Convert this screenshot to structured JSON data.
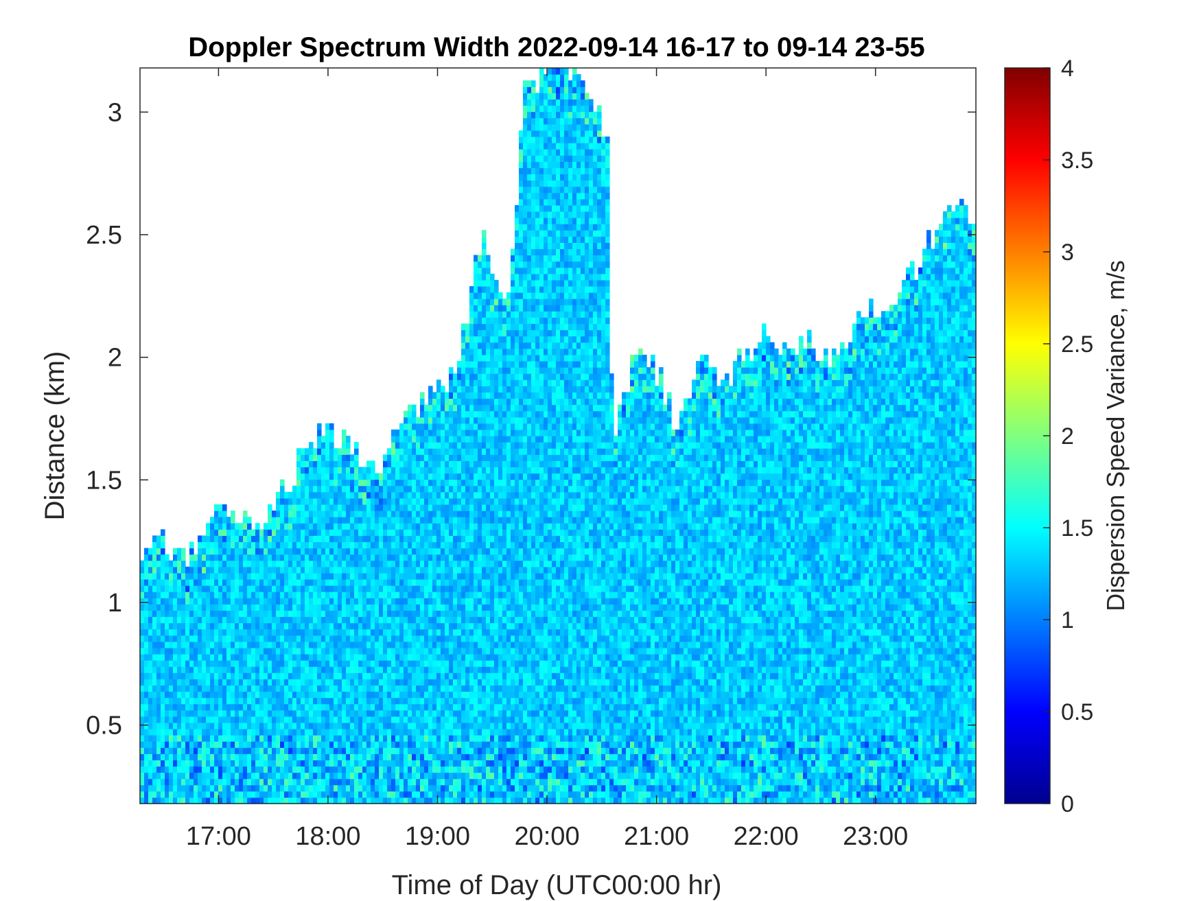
{
  "chart_data": {
    "type": "heatmap",
    "title": "Doppler Spectrum Width 2022-09-14 16-17 to 09-14 23-55",
    "xlabel": "Time of Day (UTC00:00 hr)",
    "ylabel": "Distance (km)",
    "x_ticks": [
      "17:00",
      "18:00",
      "19:00",
      "20:00",
      "21:00",
      "22:00",
      "23:00"
    ],
    "x_tick_hours": [
      17,
      18,
      19,
      20,
      21,
      22,
      23
    ],
    "xlim": [
      16.283,
      23.917
    ],
    "y_ticks": [
      "0.5",
      "1",
      "1.5",
      "2",
      "2.5",
      "3"
    ],
    "y_tick_values": [
      0.5,
      1,
      1.5,
      2,
      2.5,
      3
    ],
    "ylim": [
      0.18,
      3.18
    ],
    "colorbar": {
      "label": "Dispersion Speed Variance, m/s",
      "colormap": "jet",
      "range": [
        0,
        4
      ],
      "ticks": [
        "0",
        "0.5",
        "1",
        "1.5",
        "2",
        "2.5",
        "3",
        "3.5",
        "4"
      ],
      "tick_values": [
        0,
        0.5,
        1,
        1.5,
        2,
        2.5,
        3,
        3.5,
        4
      ]
    },
    "typical_value": 1.3,
    "signal_top_km": {
      "hours": [
        16.28,
        16.5,
        16.7,
        16.85,
        17.0,
        17.2,
        17.4,
        17.6,
        17.75,
        17.9,
        18.05,
        18.25,
        18.45,
        18.6,
        18.8,
        19.0,
        19.2,
        19.4,
        19.5,
        19.65,
        19.8,
        20.0,
        20.3,
        20.55,
        20.6,
        20.8,
        21.0,
        21.2,
        21.4,
        21.6,
        21.8,
        22.0,
        22.2,
        22.4,
        22.6,
        22.8,
        23.0,
        23.2,
        23.4,
        23.6,
        23.75,
        23.917
      ],
      "km": [
        1.15,
        1.25,
        1.15,
        1.3,
        1.35,
        1.35,
        1.3,
        1.45,
        1.6,
        1.7,
        1.7,
        1.6,
        1.5,
        1.7,
        1.8,
        1.85,
        2.0,
        2.5,
        2.3,
        2.2,
        3.1,
        3.18,
        3.18,
        2.9,
        1.65,
        2.0,
        1.95,
        1.7,
        2.05,
        1.9,
        2.0,
        2.1,
        2.0,
        2.05,
        2.0,
        2.1,
        2.2,
        2.25,
        2.4,
        2.55,
        2.6,
        2.6
      ]
    },
    "grid": false
  }
}
